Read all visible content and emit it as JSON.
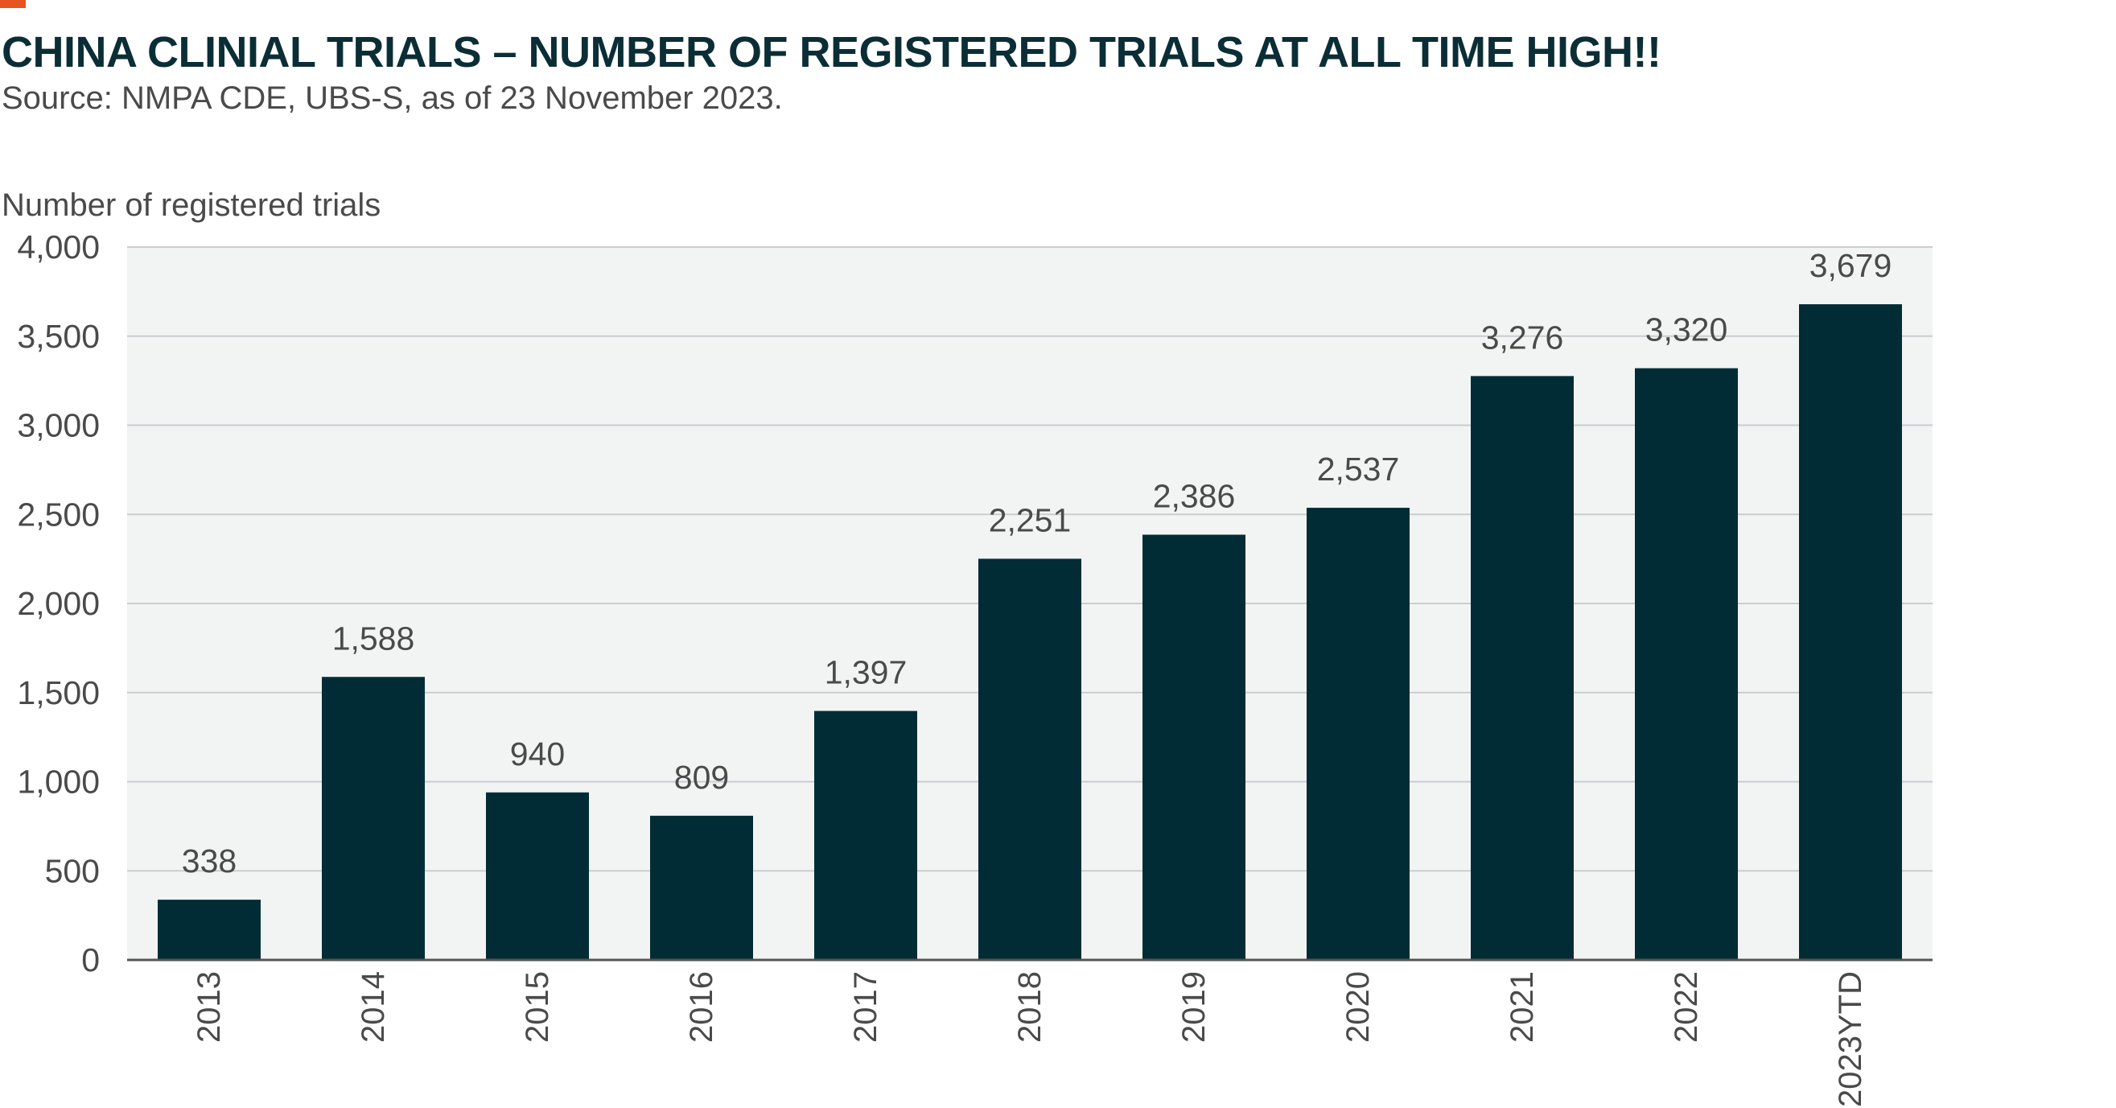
{
  "header": {
    "title": "CHINA CLINIAL TRIALS – NUMBER OF REGISTERED TRIALS AT ALL TIME HIGH!!",
    "subtitle": "Source: NMPA CDE, UBS-S, as of 23 November 2023."
  },
  "colors": {
    "accent": "#e8541f",
    "title": "#0b2e36",
    "text": "#4a4a4a",
    "bar": "#022c35",
    "plot_background": "#f2f4f4",
    "gridline": "#c9cdcf",
    "axis": "#555555"
  },
  "chart_data": {
    "type": "bar",
    "title": "CHINA CLINIAL TRIALS – NUMBER OF REGISTERED TRIALS AT ALL TIME HIGH!!",
    "subtitle": "Source: NMPA CDE, UBS-S, as of 23 November 2023.",
    "ylabel": "Number of registered trials",
    "xlabel": "",
    "categories": [
      "2013",
      "2014",
      "2015",
      "2016",
      "2017",
      "2018",
      "2019",
      "2020",
      "2021",
      "2022",
      "2023YTD"
    ],
    "values": [
      338,
      1588,
      940,
      809,
      1397,
      2251,
      2386,
      2537,
      3276,
      3320,
      3679
    ],
    "data_labels": [
      "338",
      "1,588",
      "940",
      "809",
      "1,397",
      "2,251",
      "2,386",
      "2,537",
      "3,276",
      "3,320",
      "3,679"
    ],
    "ylim": [
      0,
      4000
    ],
    "yticks": [
      0,
      500,
      1000,
      1500,
      2000,
      2500,
      3000,
      3500,
      4000
    ],
    "ytick_labels": [
      "0",
      "500",
      "1,000",
      "1,500",
      "2,000",
      "2,500",
      "3,000",
      "3,500",
      "4,000"
    ],
    "grid": true,
    "legend": "none"
  }
}
